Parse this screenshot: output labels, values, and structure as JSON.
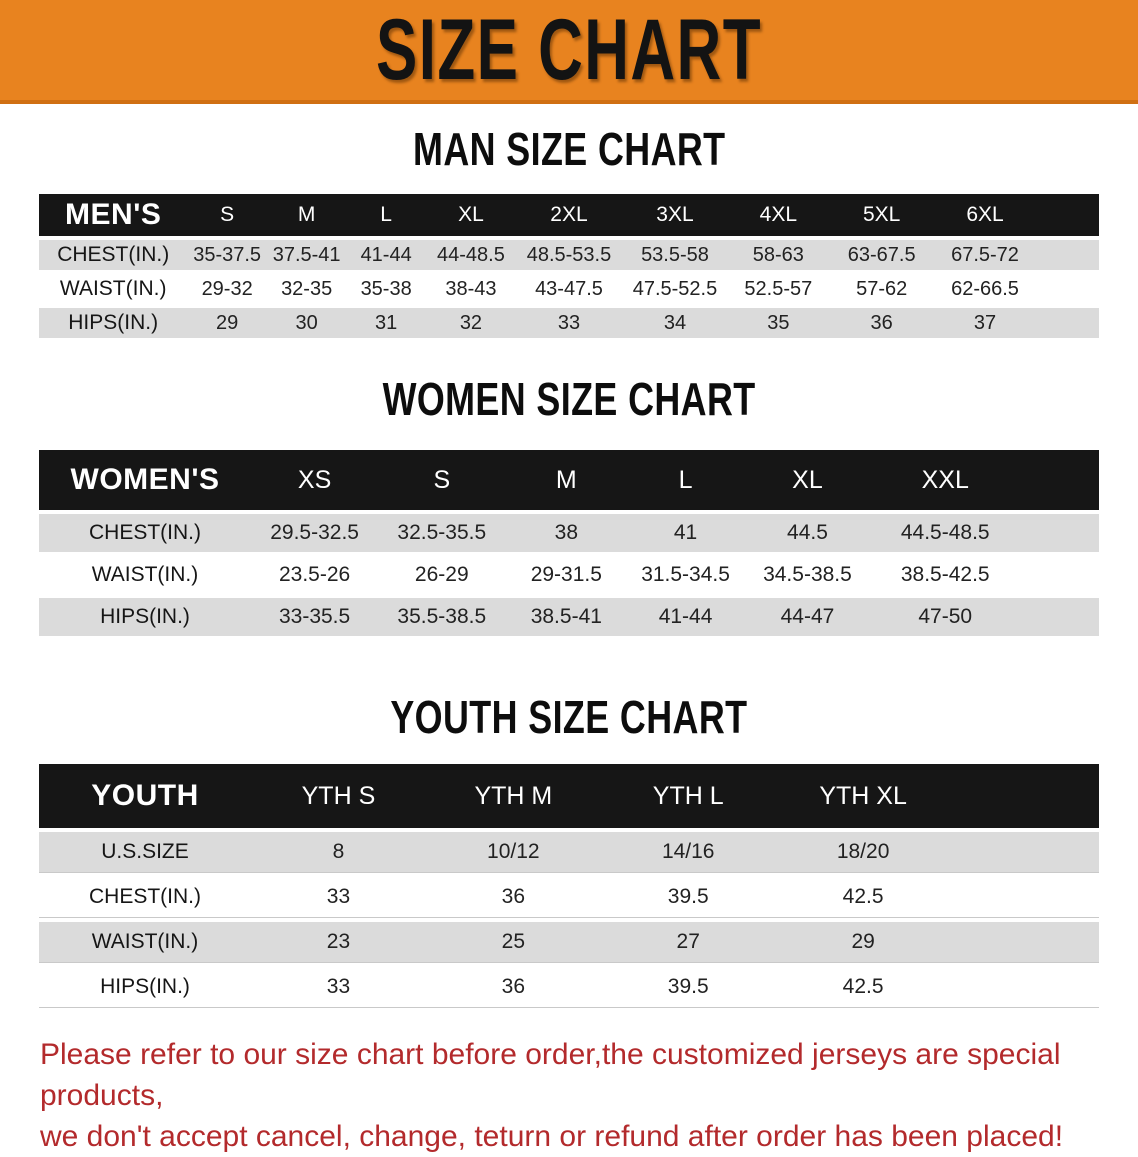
{
  "banner": {
    "title": "SIZE CHART",
    "bg_color": "#E8831F",
    "text_color": "#131313"
  },
  "colors": {
    "band_black": "#161616",
    "row_gray": "#DBDBDB",
    "row_white": "#FFFFFF",
    "disclaimer_red": "#B32A2C"
  },
  "sections": [
    {
      "id": "men",
      "heading": "MAN SIZE CHART",
      "table": {
        "header_label": "MEN'S",
        "columns": [
          "S",
          "M",
          "L",
          "XL",
          "2XL",
          "3XL",
          "4XL",
          "5XL",
          "6XL"
        ],
        "col_widths": [
          "14%",
          "7.5%",
          "7.5%",
          "7.5%",
          "8.5%",
          "10%",
          "10%",
          "9.5%",
          "10%",
          "9.5%",
          "6%"
        ],
        "rows": [
          {
            "label": "CHEST(IN.)",
            "values": [
              "35-37.5",
              "37.5-41",
              "41-44",
              "44-48.5",
              "48.5-53.5",
              "53.5-58",
              "58-63",
              "63-67.5",
              "67.5-72"
            ]
          },
          {
            "label": "WAIST(IN.)",
            "values": [
              "29-32",
              "32-35",
              "35-38",
              "38-43",
              "43-47.5",
              "47.5-52.5",
              "52.5-57",
              "57-62",
              "62-66.5"
            ]
          },
          {
            "label": "HIPS(IN.)",
            "values": [
              "29",
              "30",
              "31",
              "32",
              "33",
              "34",
              "35",
              "36",
              "37"
            ]
          }
        ]
      }
    },
    {
      "id": "women",
      "heading": "WOMEN SIZE CHART",
      "table": {
        "header_label": "WOMEN'S",
        "columns": [
          "XS",
          "S",
          "M",
          "L",
          "XL",
          "XXL"
        ],
        "col_widths": [
          "20%",
          "12%",
          "12%",
          "11.5%",
          "11%",
          "12%",
          "14%",
          "7.5%"
        ],
        "rows": [
          {
            "label": "CHEST(IN.)",
            "values": [
              "29.5-32.5",
              "32.5-35.5",
              "38",
              "41",
              "44.5",
              "44.5-48.5"
            ]
          },
          {
            "label": "WAIST(IN.)",
            "values": [
              "23.5-26",
              "26-29",
              "29-31.5",
              "31.5-34.5",
              "34.5-38.5",
              "38.5-42.5"
            ]
          },
          {
            "label": "HIPS(IN.)",
            "values": [
              "33-35.5",
              "35.5-38.5",
              "38.5-41",
              "41-44",
              "44-47",
              "47-50"
            ]
          }
        ]
      }
    },
    {
      "id": "youth",
      "heading": "YOUTH SIZE CHART",
      "table": {
        "header_label": "YOUTH",
        "columns": [
          "YTH S",
          "YTH M",
          "YTH L",
          "YTH XL"
        ],
        "col_widths": [
          "20%",
          "16.5%",
          "16.5%",
          "16.5%",
          "16.5%",
          "14%"
        ],
        "rows": [
          {
            "label": "U.S.SIZE",
            "values": [
              "8",
              "10/12",
              "14/16",
              "18/20"
            ]
          },
          {
            "label": "CHEST(IN.)",
            "values": [
              "33",
              "36",
              "39.5",
              "42.5"
            ]
          },
          {
            "label": "WAIST(IN.)",
            "values": [
              "23",
              "25",
              "27",
              "29"
            ]
          },
          {
            "label": "HIPS(IN.)",
            "values": [
              "33",
              "36",
              "39.5",
              "42.5"
            ]
          }
        ]
      }
    }
  ],
  "disclaimer": {
    "line1": "Please refer to our size chart before order,the customized jerseys are special products,",
    "line2": "we don't accept cancel, change, teturn or refund after order has been placed!"
  }
}
